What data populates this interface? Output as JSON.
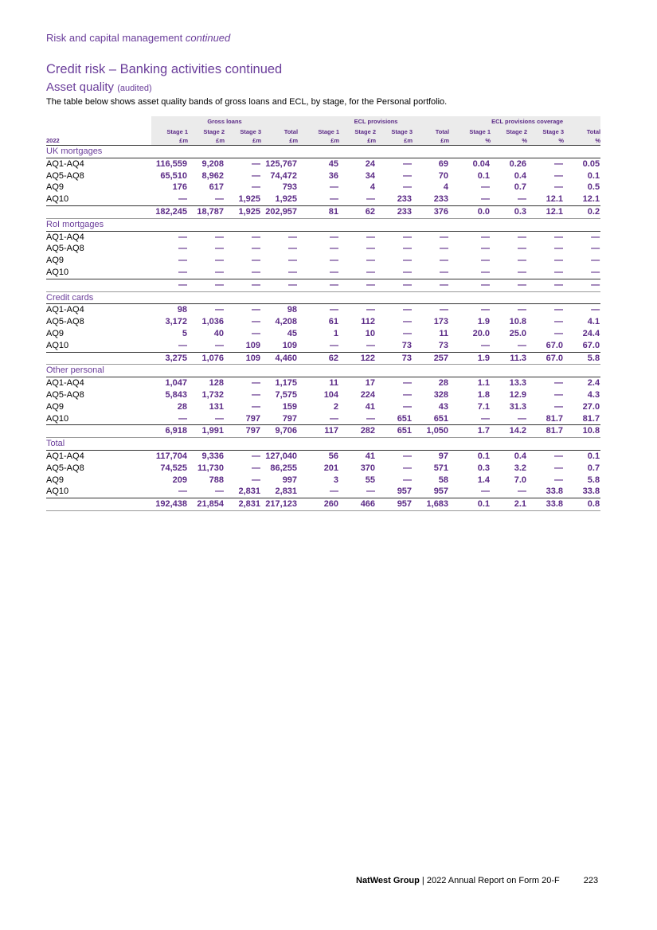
{
  "header": {
    "section": "Risk and capital management",
    "section_suffix": "continued"
  },
  "title": "Credit risk – Banking activities continued",
  "subtitle": "Asset quality",
  "subtitle_note": "(audited)",
  "intro": "The table below shows asset quality bands of gross loans and ECL, by stage, for the Personal portfolio.",
  "table": {
    "groups": [
      "Gross loans",
      "ECL provisions",
      "ECL provisions coverage"
    ],
    "year": "2022",
    "columns": [
      {
        "stage": "Stage 1",
        "unit": "£m"
      },
      {
        "stage": "Stage 2",
        "unit": "£m"
      },
      {
        "stage": "Stage 3",
        "unit": "£m"
      },
      {
        "stage": "Total",
        "unit": "£m"
      },
      {
        "stage": "Stage 1",
        "unit": "£m"
      },
      {
        "stage": "Stage 2",
        "unit": "£m"
      },
      {
        "stage": "Stage 3",
        "unit": "£m"
      },
      {
        "stage": "Total",
        "unit": "£m"
      },
      {
        "stage": "Stage 1",
        "unit": "%"
      },
      {
        "stage": "Stage 2",
        "unit": "%"
      },
      {
        "stage": "Stage 3",
        "unit": "%"
      },
      {
        "stage": "Total",
        "unit": "%"
      }
    ],
    "sections": [
      {
        "title": "UK mortgages",
        "rows": [
          {
            "label": "AQ1-AQ4",
            "cells": [
              "116,559",
              "9,208",
              "—",
              "125,767",
              "45",
              "24",
              "—",
              "69",
              "0.04",
              "0.26",
              "—",
              "0.05"
            ]
          },
          {
            "label": "AQ5-AQ8",
            "cells": [
              "65,510",
              "8,962",
              "—",
              "74,472",
              "36",
              "34",
              "—",
              "70",
              "0.1",
              "0.4",
              "—",
              "0.1"
            ]
          },
          {
            "label": "AQ9",
            "cells": [
              "176",
              "617",
              "—",
              "793",
              "—",
              "4",
              "—",
              "4",
              "—",
              "0.7",
              "—",
              "0.5"
            ]
          },
          {
            "label": "AQ10",
            "cells": [
              "—",
              "—",
              "1,925",
              "1,925",
              "—",
              "—",
              "233",
              "233",
              "—",
              "—",
              "12.1",
              "12.1"
            ]
          }
        ],
        "total": [
          "182,245",
          "18,787",
          "1,925",
          "202,957",
          "81",
          "62",
          "233",
          "376",
          "0.0",
          "0.3",
          "12.1",
          "0.2"
        ]
      },
      {
        "title": "RoI mortgages",
        "rows": [
          {
            "label": "AQ1-AQ4",
            "cells": [
              "—",
              "—",
              "—",
              "—",
              "—",
              "—",
              "—",
              "—",
              "—",
              "—",
              "—",
              "—"
            ]
          },
          {
            "label": "AQ5-AQ8",
            "cells": [
              "—",
              "—",
              "—",
              "—",
              "—",
              "—",
              "—",
              "—",
              "—",
              "—",
              "—",
              "—"
            ]
          },
          {
            "label": "AQ9",
            "cells": [
              "—",
              "—",
              "—",
              "—",
              "—",
              "—",
              "—",
              "—",
              "—",
              "—",
              "—",
              "—"
            ]
          },
          {
            "label": "AQ10",
            "cells": [
              "—",
              "—",
              "—",
              "—",
              "—",
              "—",
              "—",
              "—",
              "—",
              "—",
              "—",
              "—"
            ]
          }
        ],
        "total": [
          "—",
          "—",
          "—",
          "—",
          "—",
          "—",
          "—",
          "—",
          "—",
          "—",
          "—",
          "—"
        ]
      },
      {
        "title": "Credit cards",
        "rows": [
          {
            "label": "AQ1-AQ4",
            "cells": [
              "98",
              "—",
              "—",
              "98",
              "—",
              "—",
              "—",
              "—",
              "—",
              "—",
              "—",
              "—"
            ]
          },
          {
            "label": "AQ5-AQ8",
            "cells": [
              "3,172",
              "1,036",
              "—",
              "4,208",
              "61",
              "112",
              "—",
              "173",
              "1.9",
              "10.8",
              "—",
              "4.1"
            ]
          },
          {
            "label": "AQ9",
            "cells": [
              "5",
              "40",
              "—",
              "45",
              "1",
              "10",
              "—",
              "11",
              "20.0",
              "25.0",
              "—",
              "24.4"
            ]
          },
          {
            "label": "AQ10",
            "cells": [
              "—",
              "—",
              "109",
              "109",
              "—",
              "—",
              "73",
              "73",
              "—",
              "—",
              "67.0",
              "67.0"
            ]
          }
        ],
        "total": [
          "3,275",
          "1,076",
          "109",
          "4,460",
          "62",
          "122",
          "73",
          "257",
          "1.9",
          "11.3",
          "67.0",
          "5.8"
        ]
      },
      {
        "title": "Other personal",
        "rows": [
          {
            "label": "AQ1-AQ4",
            "cells": [
              "1,047",
              "128",
              "—",
              "1,175",
              "11",
              "17",
              "—",
              "28",
              "1.1",
              "13.3",
              "—",
              "2.4"
            ]
          },
          {
            "label": "AQ5-AQ8",
            "cells": [
              "5,843",
              "1,732",
              "—",
              "7,575",
              "104",
              "224",
              "—",
              "328",
              "1.8",
              "12.9",
              "—",
              "4.3"
            ]
          },
          {
            "label": "AQ9",
            "cells": [
              "28",
              "131",
              "—",
              "159",
              "2",
              "41",
              "—",
              "43",
              "7.1",
              "31.3",
              "—",
              "27.0"
            ]
          },
          {
            "label": "AQ10",
            "cells": [
              "—",
              "—",
              "797",
              "797",
              "—",
              "—",
              "651",
              "651",
              "—",
              "—",
              "81.7",
              "81.7"
            ]
          }
        ],
        "total": [
          "6,918",
          "1,991",
          "797",
          "9,706",
          "117",
          "282",
          "651",
          "1,050",
          "1.7",
          "14.2",
          "81.7",
          "10.8"
        ]
      },
      {
        "title": "Total",
        "rows": [
          {
            "label": "AQ1-AQ4",
            "cells": [
              "117,704",
              "9,336",
              "—",
              "127,040",
              "56",
              "41",
              "—",
              "97",
              "0.1",
              "0.4",
              "—",
              "0.1"
            ]
          },
          {
            "label": "AQ5-AQ8",
            "cells": [
              "74,525",
              "11,730",
              "—",
              "86,255",
              "201",
              "370",
              "—",
              "571",
              "0.3",
              "3.2",
              "—",
              "0.7"
            ]
          },
          {
            "label": "AQ9",
            "cells": [
              "209",
              "788",
              "—",
              "997",
              "3",
              "55",
              "—",
              "58",
              "1.4",
              "7.0",
              "—",
              "5.8"
            ]
          },
          {
            "label": "AQ10",
            "cells": [
              "—",
              "—",
              "2,831",
              "2,831",
              "—",
              "—",
              "957",
              "957",
              "—",
              "—",
              "33.8",
              "33.8"
            ]
          }
        ],
        "total": [
          "192,438",
          "21,854",
          "2,831",
          "217,123",
          "260",
          "466",
          "957",
          "1,683",
          "0.1",
          "2.1",
          "33.8",
          "0.8"
        ]
      }
    ]
  },
  "footer": {
    "brand": "NatWest Group",
    "report": "2022 Annual Report on Form 20-F",
    "page": "223"
  }
}
